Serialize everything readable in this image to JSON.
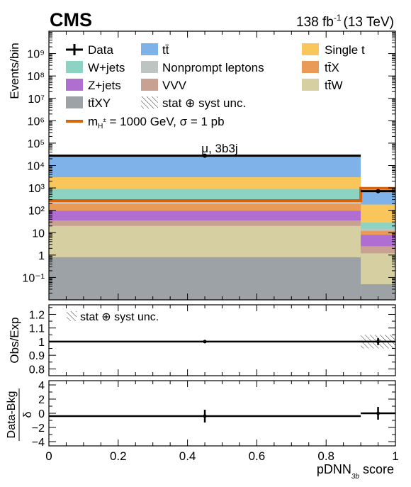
{
  "header": {
    "experiment": "CMS",
    "lumi_value": "138 fb",
    "lumi_exp": "-1",
    "energy": "(13 TeV)"
  },
  "colors": {
    "ttbar": "#7eb2e8",
    "single_t": "#f9c65c",
    "wjets": "#8dd3c3",
    "nonprompt": "#bdc4c1",
    "ttX": "#e89a56",
    "zjets": "#b06ed0",
    "vvv": "#c9a192",
    "ttW": "#d6cfa2",
    "ttXY": "#9da2a6",
    "signal": "#d9620a",
    "data": "#000000"
  },
  "legend": {
    "data": "Data",
    "ttbar": "tt̄",
    "single_t": "Single t",
    "wjets": "W+jets",
    "nonprompt": "Nonprompt leptons",
    "ttX": "tt̄X",
    "zjets": "Z+jets",
    "vvv": "VVV",
    "ttW": "tt̄W",
    "ttXY": "tt̄XY",
    "unc": "stat ⊕ syst unc.",
    "signal_pre": "m",
    "signal_sub": "H",
    "signal_sup": "±",
    "signal_post": " = 1000 GeV, σ = 1 pb"
  },
  "chart_data": {
    "type": "bar",
    "channel_label": "μ, 3b3j",
    "x_label_main": "pDNN",
    "x_label_sub": "3b",
    "x_label_suffix": " score",
    "xlim": [
      0,
      1
    ],
    "x_ticks": [
      "0",
      "0.2",
      "0.4",
      "0.6",
      "0.8",
      "1"
    ],
    "bins": [
      [
        0,
        0.9
      ],
      [
        0.9,
        1.0
      ]
    ],
    "main": {
      "ylabel": "Events/bin",
      "yscale": "log",
      "ylim": [
        0.01,
        10000000000.0
      ],
      "y_tick_labels": [
        "10⁻¹",
        "1",
        "10",
        "10²",
        "10³",
        "10⁴",
        "10⁵",
        "10⁶",
        "10⁷",
        "10⁸",
        "10⁹"
      ],
      "stack_order": [
        "ttXY",
        "ttW",
        "vvv",
        "zjets",
        "ttX",
        "nonprompt",
        "wjets",
        "single_t",
        "ttbar"
      ],
      "cumulative_tops": {
        "ttXY": [
          0.8,
          0.05
        ],
        "ttW": [
          20,
          1.2
        ],
        "vvv": [
          35,
          2.5
        ],
        "zjets": [
          95,
          8
        ],
        "ttX": [
          190,
          12
        ],
        "nonprompt": [
          310,
          15
        ],
        "wjets": [
          900,
          28
        ],
        "single_t": [
          3000,
          180
        ],
        "ttbar": [
          27000,
          700
        ]
      },
      "signal": [
        270,
        950
      ],
      "data": [
        27500,
        720
      ]
    },
    "ratio": {
      "ylabel": "Obs/Exp",
      "ylim": [
        0.75,
        1.27
      ],
      "y_tick_labels": [
        "0.8",
        "0.9",
        "1",
        "1.1",
        "1.2"
      ],
      "values": [
        1.0,
        1.0
      ],
      "errors": [
        0.004,
        0.05
      ],
      "unc_label": "stat ⊕ syst unc."
    },
    "pull": {
      "ylabel_top": "Data-Bkg",
      "ylabel_bottom": "δ",
      "ylim": [
        -4.6,
        4.6
      ],
      "y_tick_labels": [
        "−4",
        "−2",
        "0",
        "2",
        "4"
      ],
      "values": [
        -0.4,
        0.0
      ],
      "errors": [
        0.9,
        0.9
      ]
    }
  }
}
